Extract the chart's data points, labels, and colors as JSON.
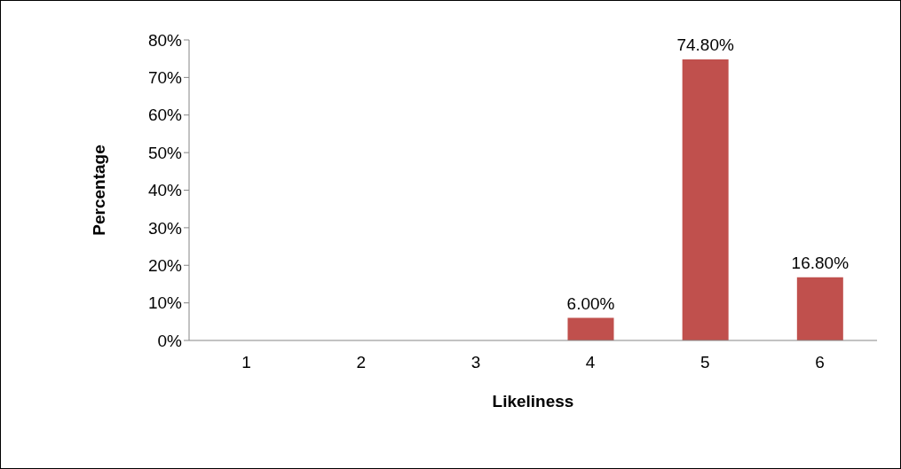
{
  "chart_data": {
    "type": "bar",
    "xlabel": "Likeliness",
    "ylabel": "Percentage",
    "categories": [
      "1",
      "2",
      "3",
      "4",
      "5",
      "6"
    ],
    "values": [
      0,
      0,
      0,
      6.0,
      74.8,
      16.8
    ],
    "value_labels": [
      null,
      null,
      null,
      "6.00%",
      "74.80%",
      "16.80%"
    ],
    "color": "#c0504d",
    "ylim": [
      0,
      80
    ],
    "yticks": [
      {
        "value": 0,
        "label": "0%"
      },
      {
        "value": 10,
        "label": "10%"
      },
      {
        "value": 20,
        "label": "20%"
      },
      {
        "value": 30,
        "label": "30%"
      },
      {
        "value": 40,
        "label": "40%"
      },
      {
        "value": 50,
        "label": "50%"
      },
      {
        "value": 60,
        "label": "60%"
      },
      {
        "value": 70,
        "label": "70%"
      },
      {
        "value": 80,
        "label": "80%"
      }
    ],
    "grid": false,
    "legend": false
  }
}
